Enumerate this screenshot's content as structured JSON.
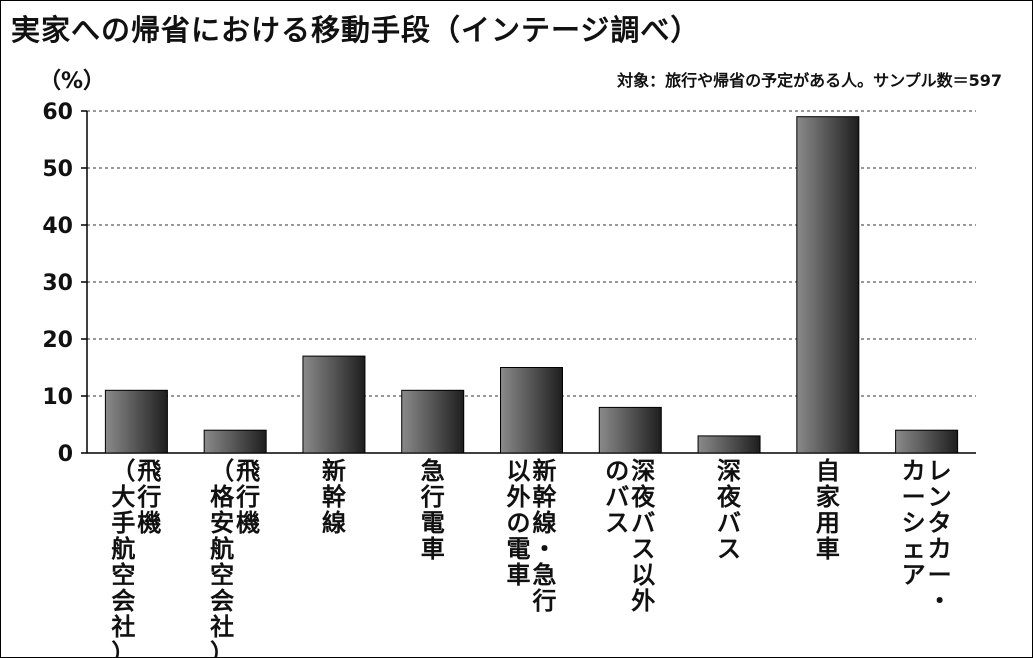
{
  "chart_data": {
    "type": "bar",
    "title": "実家への帰省における移動手段（インテージ調べ）",
    "ylabel": "（%）",
    "note": "対象：旅行や帰省の予定がある人。サンプル数＝597",
    "ylim": [
      0,
      60
    ],
    "yticks": [
      0,
      10,
      20,
      30,
      40,
      50,
      60
    ],
    "grid": true,
    "bar_color": "#4a4a4a",
    "categories": [
      "飛行機（大手航空会社）",
      "飛行機（格安航空会社）",
      "新幹線",
      "急行電車",
      "新幹線・急行以外の電車",
      "深夜バス以外のバス",
      "深夜バス",
      "自家用車",
      "レンタカー・カーシェア"
    ],
    "label_columns": [
      [
        "飛行機",
        "（大手航空会社）"
      ],
      [
        "飛行機",
        "（格安航空会社）"
      ],
      [
        "新幹線"
      ],
      [
        "急行電車"
      ],
      [
        "新幹線・急行",
        "以外の電車"
      ],
      [
        "深夜バス以外",
        "のバス"
      ],
      [
        "深夜バス"
      ],
      [
        "自家用車"
      ],
      [
        "レンタカー・",
        "カーシェア"
      ]
    ],
    "values": [
      11,
      4,
      17,
      11,
      15,
      8,
      3,
      59,
      4
    ]
  }
}
